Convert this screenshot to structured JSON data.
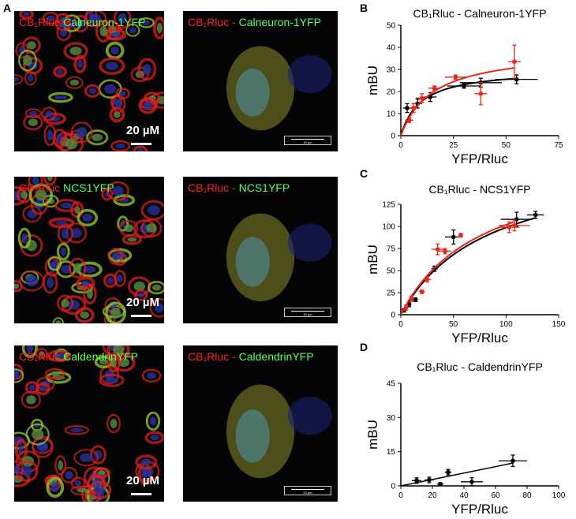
{
  "panels": {
    "A": "A",
    "B": "B",
    "C": "C",
    "D": "D"
  },
  "micrographs": [
    {
      "red": "CB₁Rluc",
      "green": "Calneuron-1YFP",
      "sep": " ",
      "scale": "20 µM",
      "type": "wide"
    },
    {
      "red": "CB₁Rluc",
      "green": "Calneuron-1YFP",
      "sep": " - ",
      "scale": "10 µm",
      "type": "zoom"
    },
    {
      "red": "CB₁Rluc",
      "green": "NCS1YFP",
      "sep": " ",
      "scale": "20 µM",
      "type": "wide"
    },
    {
      "red": "CB₁Rluc",
      "green": "NCS1YFP",
      "sep": " - ",
      "scale": "10 µm",
      "type": "zoom"
    },
    {
      "red": "CB₁Rluc",
      "green": "CaldendrinYFP",
      "sep": " ",
      "scale": "20 µM",
      "type": "wide"
    },
    {
      "red": "CB₁Rluc",
      "green": "CaldendrinYFP",
      "sep": " - ",
      "scale": "10 µm",
      "type": "zoom"
    }
  ],
  "colors": {
    "red_series": "#e8261c",
    "black_series": "#000000"
  },
  "chart_data": [
    {
      "type": "scatter",
      "title": "CB₁Rluc - Calneuron-1YFP",
      "xlabel": "YFP/Rluc",
      "ylabel": "mBU",
      "xlim": [
        0,
        75
      ],
      "ylim": [
        0,
        50
      ],
      "xticks": [
        0,
        25,
        50,
        75
      ],
      "yticks": [
        0,
        10,
        20,
        30,
        40,
        50
      ],
      "series": [
        {
          "color": "#000000",
          "points": [
            [
              3,
              12.5,
              2,
              2
            ],
            [
              8,
              14.5,
              2,
              2
            ],
            [
              14,
              17.5,
              3,
              2
            ],
            [
              30,
              22.5,
              8,
              1
            ],
            [
              38,
              24,
              10,
              2
            ],
            [
              55,
              25.5,
              10,
              2
            ]
          ],
          "curve": {
            "bmax": 30.4,
            "kd": 9.5
          }
        },
        {
          "color": "#e8261c",
          "points": [
            [
              4,
              7,
              2,
              1
            ],
            [
              6,
              12.5,
              2,
              2
            ],
            [
              10,
              17,
              3,
              2
            ],
            [
              16,
              21.5,
              3,
              1
            ],
            [
              26,
              26.5,
              5,
              1
            ],
            [
              38,
              19,
              3,
              5
            ],
            [
              54,
              33.5,
              3,
              7.5
            ]
          ],
          "curve": {
            "bmax": 39.3,
            "kd": 15.2
          }
        }
      ]
    },
    {
      "type": "scatter",
      "title": "CB₁Rluc - NCS1YFP",
      "xlabel": "YFP/Rluc",
      "ylabel": "mBU",
      "xlim": [
        0,
        150
      ],
      "ylim": [
        0,
        125
      ],
      "xticks": [
        0,
        50,
        100,
        150
      ],
      "yticks": [
        0,
        25,
        50,
        75,
        100,
        125
      ],
      "series": [
        {
          "color": "#000000",
          "points": [
            [
              3,
              5,
              1,
              2
            ],
            [
              8,
              12,
              2,
              3
            ],
            [
              14,
              17,
              2,
              2
            ],
            [
              32,
              52,
              3,
              3
            ],
            [
              50,
              88,
              8,
              8
            ],
            [
              110,
              108,
              15,
              8
            ],
            [
              128,
              113,
              8,
              4
            ]
          ],
          "curve": {
            "bmax": 180.4,
            "kd": 82.7
          }
        },
        {
          "color": "#e8261c",
          "points": [
            [
              5,
              8,
              2,
              3
            ],
            [
              10,
              18,
              2,
              3
            ],
            [
              20,
              26,
              3,
              2
            ],
            [
              25,
              40,
              4,
              3
            ],
            [
              35,
              74,
              6,
              6
            ],
            [
              42,
              72,
              6,
              3
            ],
            [
              57,
              90,
              2,
              2
            ],
            [
              103,
              99,
              10,
              6
            ],
            [
              108,
              101,
              15,
              6
            ]
          ],
          "curve": {
            "bmax": 180.0,
            "kd": 76.7
          }
        }
      ]
    },
    {
      "type": "scatter",
      "title": "CB₁Rluc - CaldendrinYFP",
      "xlabel": "YFP/Rluc",
      "ylabel": "mBU",
      "xlim": [
        0,
        100
      ],
      "ylim": [
        0,
        45
      ],
      "xticks": [
        0,
        20,
        40,
        60,
        80,
        100
      ],
      "yticks": [
        0,
        15,
        30,
        45
      ],
      "series": [
        {
          "color": "#000000",
          "points": [
            [
              10,
              2.3,
              3,
              1.2
            ],
            [
              18,
              2.6,
              3,
              1.2
            ],
            [
              25,
              0.8,
              2,
              0.6
            ],
            [
              30,
              6,
              2,
              1.2
            ],
            [
              45,
              1.8,
              7,
              1.8
            ],
            [
              71,
              11,
              9,
              2.5
            ]
          ],
          "line": [
            [
              0,
              0
            ],
            [
              71,
              10
            ]
          ]
        }
      ]
    }
  ]
}
